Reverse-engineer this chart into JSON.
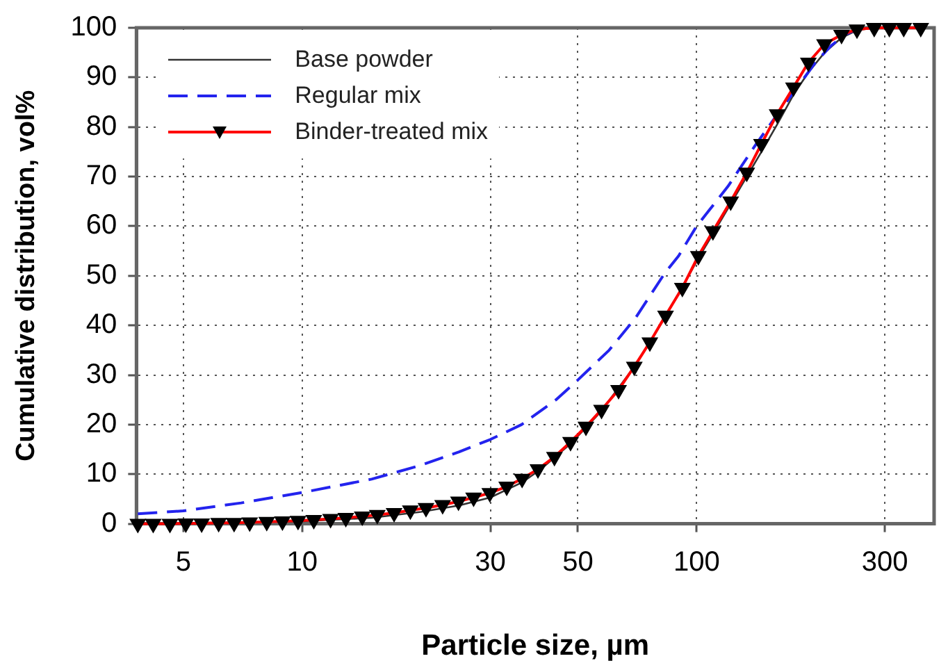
{
  "chart_data": {
    "type": "line",
    "xlabel": "Particle size, µm",
    "ylabel": "Cumulative distribution, vol%",
    "log": "x",
    "xlim": [
      3.8,
      400
    ],
    "xticks": [
      5,
      10,
      30,
      50,
      100,
      300
    ],
    "ylim": [
      0,
      100
    ],
    "yticks": [
      0,
      10,
      20,
      30,
      40,
      50,
      60,
      70,
      80,
      90,
      100
    ],
    "grid": true,
    "legend": "top left",
    "series": [
      {
        "name": "Base powder",
        "color": "#333333",
        "line_style": "solid",
        "marker": "none",
        "x": [
          3.83,
          10,
          15,
          20,
          25,
          30,
          36,
          40,
          48,
          57,
          70,
          83,
          101,
          122,
          146,
          160,
          176,
          192,
          211,
          233,
          255,
          282,
          308,
          370
        ],
        "values": [
          0,
          0.5,
          1.2,
          2.4,
          3.7,
          5.3,
          8.3,
          10.8,
          16.2,
          22.5,
          32,
          41.5,
          53.5,
          64.5,
          75,
          80.5,
          86.5,
          91,
          95,
          98,
          99.5,
          100,
          100,
          100
        ]
      },
      {
        "name": "Regular mix",
        "color": "#2323ee",
        "line_style": "dashed",
        "marker": "none",
        "x": [
          3.83,
          5,
          7,
          10,
          15,
          20,
          25,
          30,
          36,
          44,
          50,
          60,
          70,
          83,
          90,
          100,
          120,
          140,
          160,
          180,
          200,
          220,
          240,
          260,
          300,
          370
        ],
        "values": [
          2,
          2.6,
          4.2,
          6.3,
          9,
          11.8,
          14.5,
          17,
          20,
          25,
          29,
          35,
          41.5,
          50.5,
          54,
          60,
          68,
          76,
          82.5,
          88,
          93,
          96.5,
          98.8,
          100,
          100,
          100
        ]
      },
      {
        "name": "Binder-treated mix",
        "color": "#ff0000",
        "line_style": "solid",
        "marker": "triangle",
        "x": [
          3.83,
          4.19,
          4.62,
          5.07,
          5.56,
          6.14,
          6.72,
          7.36,
          8.13,
          8.91,
          9.76,
          10.7,
          11.8,
          12.9,
          14.2,
          15.5,
          17.1,
          18.8,
          20.6,
          22.7,
          24.9,
          27.2,
          29.9,
          33,
          36.1,
          39.6,
          43.6,
          47.9,
          52.4,
          57.4,
          63.4,
          69.5,
          76.1,
          83.4,
          92,
          101,
          110,
          122,
          134,
          146,
          160,
          176,
          192,
          211,
          233,
          255,
          282,
          308,
          335,
          370
        ],
        "values": [
          0,
          0,
          0,
          0.1,
          0.1,
          0.2,
          0.2,
          0.3,
          0.4,
          0.5,
          0.6,
          0.8,
          1,
          1.2,
          1.5,
          1.8,
          2.2,
          2.7,
          3.2,
          3.8,
          4.5,
          5.3,
          6.2,
          7.5,
          9.1,
          11,
          13.5,
          16.5,
          19.6,
          23,
          27,
          31.7,
          36.6,
          42,
          47.6,
          54,
          59,
          65,
          70.8,
          76.6,
          82.6,
          88,
          93,
          96.7,
          98.6,
          99.7,
          100,
          100,
          100,
          100
        ]
      }
    ]
  }
}
